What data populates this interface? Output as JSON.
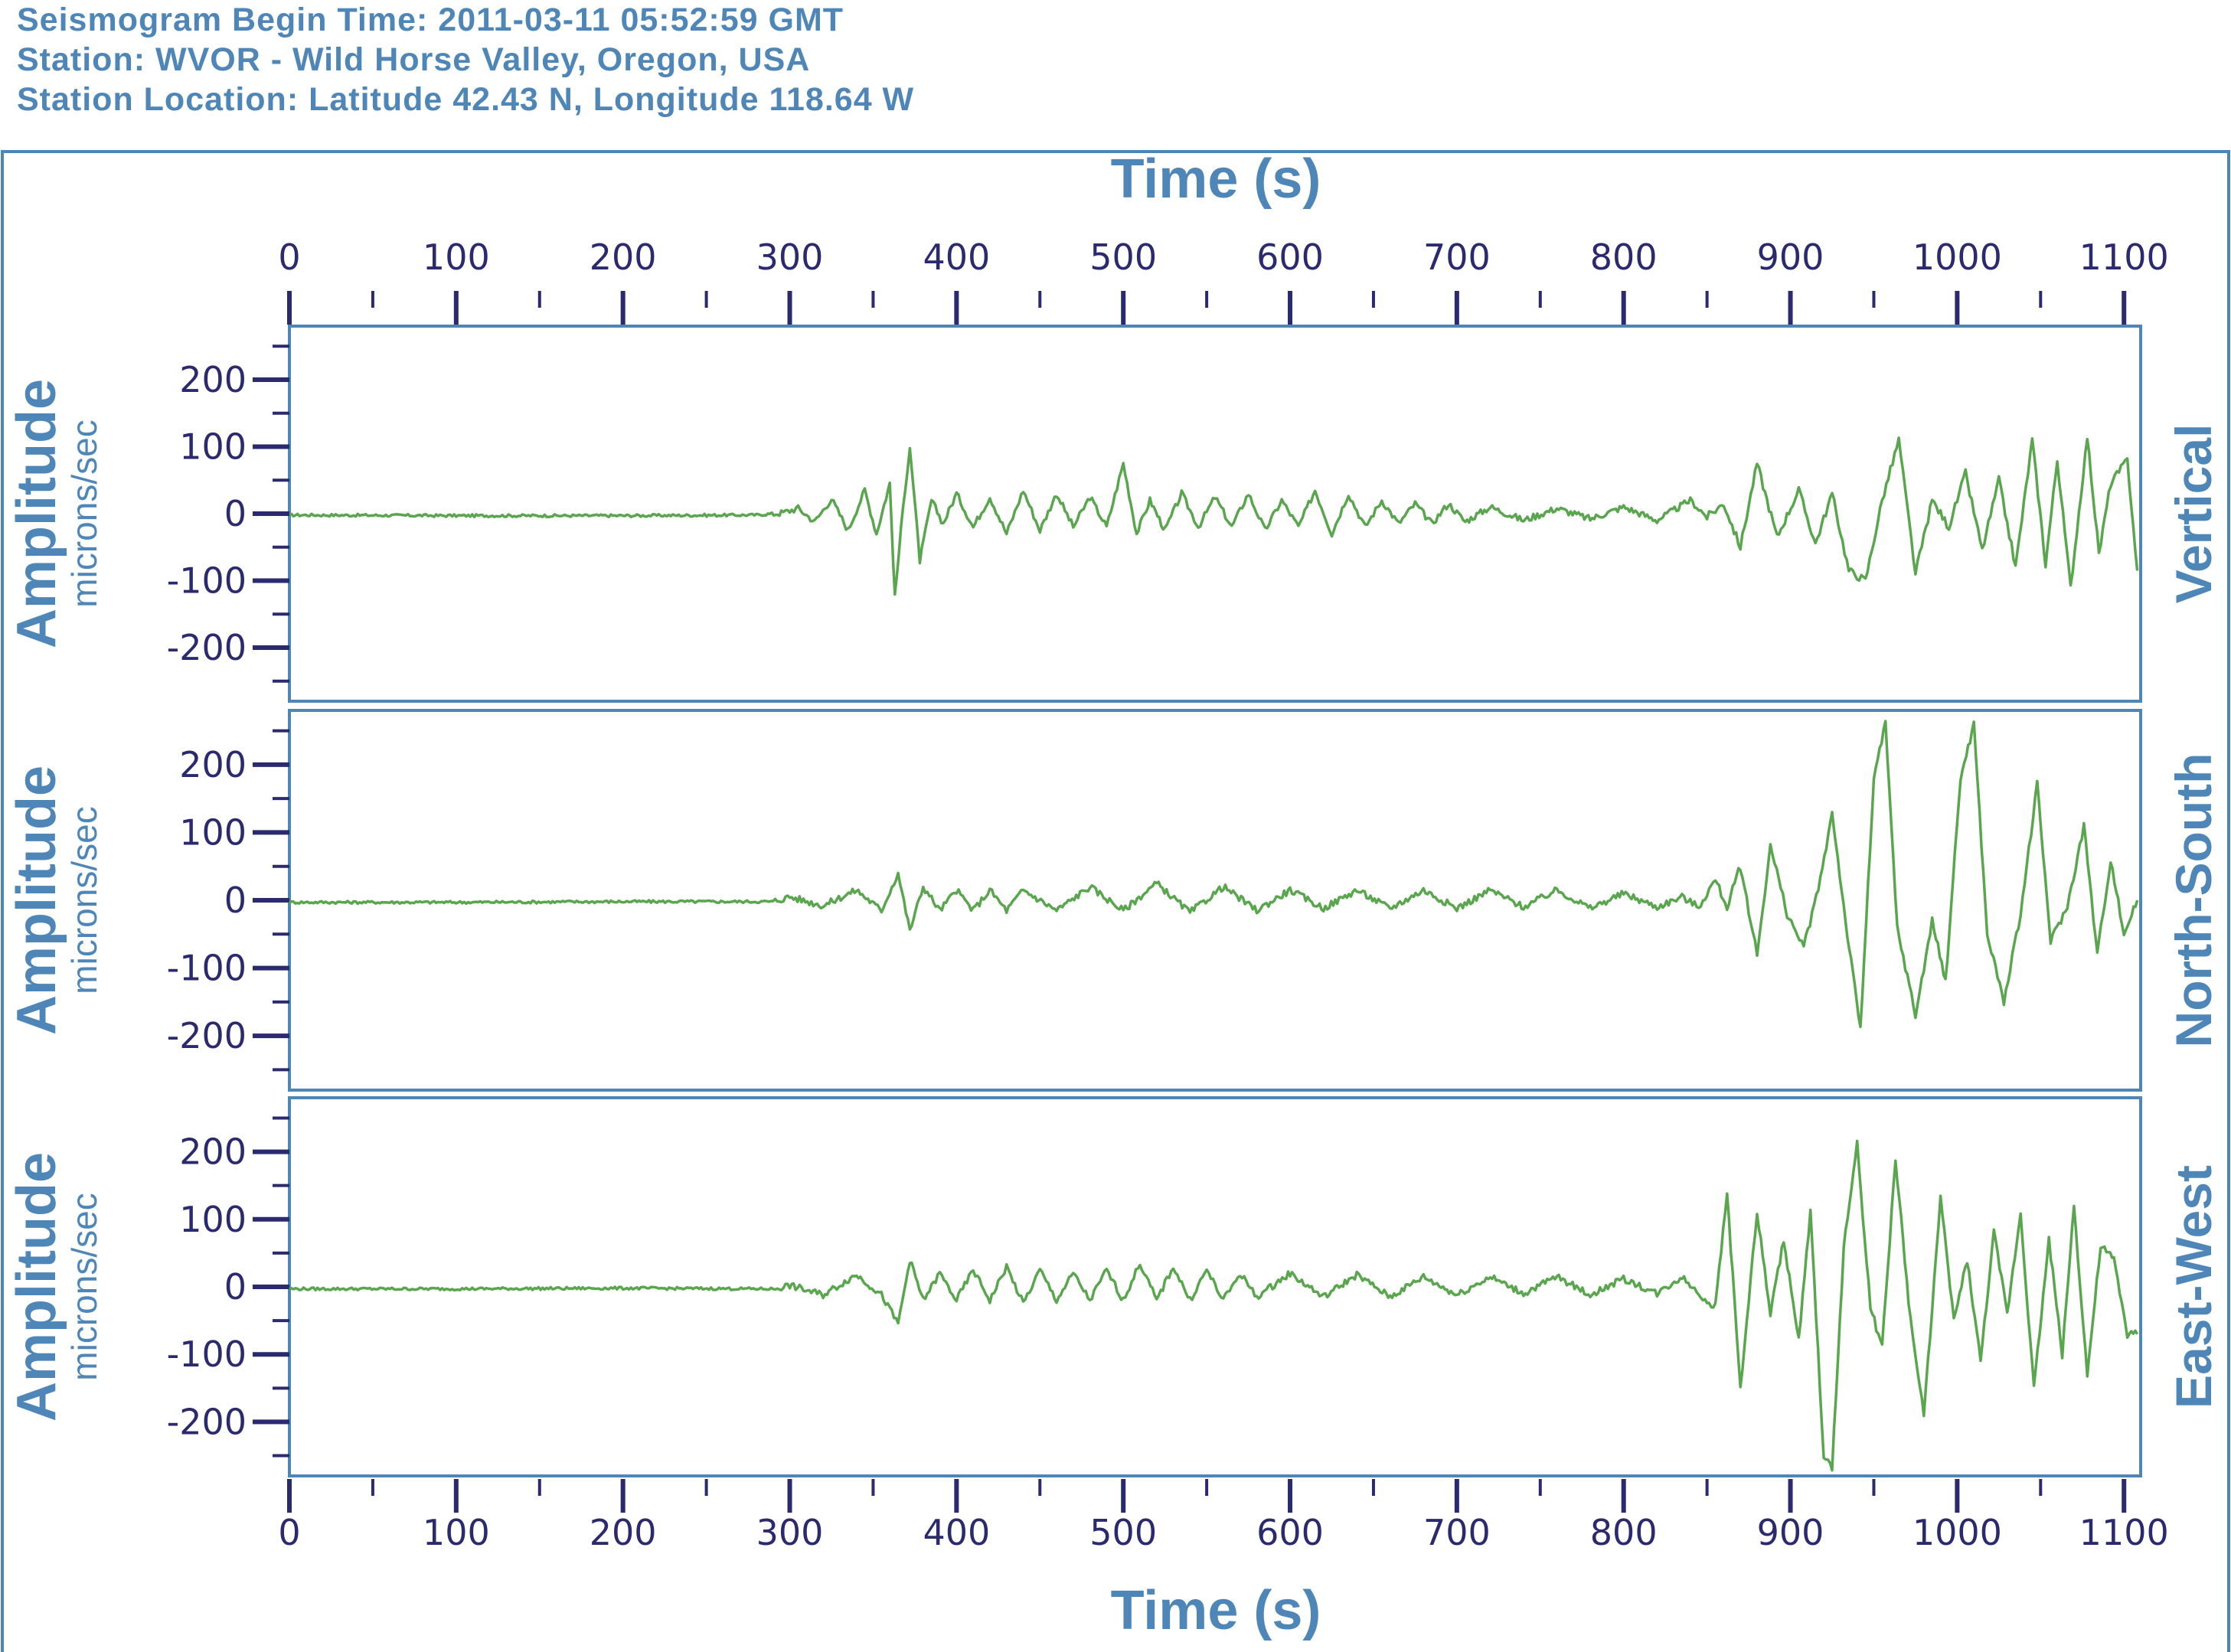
{
  "header": {
    "line1": "Seismogram Begin Time: 2011-03-11 05:52:59 GMT",
    "line2": "Station: WVOR - Wild Horse Valley, Oregon, USA",
    "line3": "Station Location: Latitude 42.43 N, Longitude 118.64 W"
  },
  "colors": {
    "trace": "#5aa64e",
    "frame": "#4f86b8",
    "tick": "#2b2a6e",
    "title": "#4f86b8"
  },
  "chart_data": {
    "type": "line",
    "xlabel": "Time (s)",
    "xlim": [
      0,
      1110
    ],
    "x_ticks": [
      "0",
      "100",
      "200",
      "300",
      "400",
      "500",
      "600",
      "700",
      "800",
      "900",
      "1000",
      "1100"
    ],
    "ylim": [
      -280,
      280
    ],
    "y_ticks": [
      "200",
      "100",
      "0",
      "-100",
      "-200"
    ],
    "ylabel": "Amplitude",
    "yunit": "microns/sec",
    "panels": [
      {
        "name": "Vertical",
        "points": [
          [
            0,
            -2
          ],
          [
            100,
            -3
          ],
          [
            200,
            -3
          ],
          [
            280,
            -2
          ],
          [
            295,
            1
          ],
          [
            305,
            8
          ],
          [
            315,
            -12
          ],
          [
            325,
            22
          ],
          [
            335,
            -25
          ],
          [
            345,
            35
          ],
          [
            352,
            -30
          ],
          [
            360,
            45
          ],
          [
            363,
            -125
          ],
          [
            368,
            10
          ],
          [
            372,
            100
          ],
          [
            378,
            -70
          ],
          [
            385,
            20
          ],
          [
            392,
            -15
          ],
          [
            400,
            30
          ],
          [
            410,
            -20
          ],
          [
            420,
            25
          ],
          [
            430,
            -30
          ],
          [
            440,
            35
          ],
          [
            450,
            -25
          ],
          [
            460,
            30
          ],
          [
            470,
            -20
          ],
          [
            480,
            25
          ],
          [
            490,
            -20
          ],
          [
            500,
            75
          ],
          [
            508,
            -30
          ],
          [
            516,
            20
          ],
          [
            525,
            -25
          ],
          [
            535,
            30
          ],
          [
            545,
            -20
          ],
          [
            555,
            25
          ],
          [
            565,
            -20
          ],
          [
            575,
            30
          ],
          [
            585,
            -25
          ],
          [
            595,
            20
          ],
          [
            605,
            -20
          ],
          [
            615,
            35
          ],
          [
            625,
            -30
          ],
          [
            635,
            30
          ],
          [
            645,
            -20
          ],
          [
            655,
            20
          ],
          [
            665,
            -15
          ],
          [
            675,
            15
          ],
          [
            685,
            -15
          ],
          [
            695,
            15
          ],
          [
            705,
            -12
          ],
          [
            720,
            10
          ],
          [
            740,
            -10
          ],
          [
            760,
            8
          ],
          [
            780,
            -8
          ],
          [
            800,
            10
          ],
          [
            820,
            -10
          ],
          [
            840,
            20
          ],
          [
            850,
            -5
          ],
          [
            860,
            15
          ],
          [
            870,
            -50
          ],
          [
            880,
            75
          ],
          [
            892,
            -35
          ],
          [
            905,
            35
          ],
          [
            915,
            -45
          ],
          [
            925,
            30
          ],
          [
            935,
            -85
          ],
          [
            945,
            -100
          ],
          [
            955,
            20
          ],
          [
            965,
            110
          ],
          [
            975,
            -90
          ],
          [
            985,
            20
          ],
          [
            995,
            -20
          ],
          [
            1005,
            60
          ],
          [
            1015,
            -55
          ],
          [
            1025,
            50
          ],
          [
            1035,
            -80
          ],
          [
            1045,
            110
          ],
          [
            1053,
            -75
          ],
          [
            1060,
            80
          ],
          [
            1068,
            -110
          ],
          [
            1078,
            115
          ],
          [
            1085,
            -60
          ],
          [
            1092,
            45
          ],
          [
            1102,
            80
          ],
          [
            1108,
            -85
          ]
        ]
      },
      {
        "name": "North-South",
        "points": [
          [
            0,
            -3
          ],
          [
            100,
            -3
          ],
          [
            200,
            -2
          ],
          [
            290,
            -2
          ],
          [
            300,
            5
          ],
          [
            320,
            -8
          ],
          [
            340,
            15
          ],
          [
            355,
            -15
          ],
          [
            365,
            40
          ],
          [
            372,
            -45
          ],
          [
            380,
            20
          ],
          [
            390,
            -15
          ],
          [
            400,
            15
          ],
          [
            410,
            -15
          ],
          [
            420,
            15
          ],
          [
            430,
            -15
          ],
          [
            440,
            15
          ],
          [
            460,
            -15
          ],
          [
            480,
            20
          ],
          [
            500,
            -15
          ],
          [
            520,
            25
          ],
          [
            540,
            -18
          ],
          [
            560,
            20
          ],
          [
            580,
            -15
          ],
          [
            600,
            15
          ],
          [
            620,
            -12
          ],
          [
            640,
            15
          ],
          [
            660,
            -12
          ],
          [
            680,
            15
          ],
          [
            700,
            -12
          ],
          [
            720,
            15
          ],
          [
            740,
            -10
          ],
          [
            760,
            15
          ],
          [
            780,
            -12
          ],
          [
            800,
            10
          ],
          [
            820,
            -10
          ],
          [
            835,
            5
          ],
          [
            845,
            -10
          ],
          [
            855,
            30
          ],
          [
            862,
            -10
          ],
          [
            870,
            50
          ],
          [
            880,
            -80
          ],
          [
            888,
            80
          ],
          [
            898,
            -20
          ],
          [
            908,
            -70
          ],
          [
            918,
            30
          ],
          [
            925,
            130
          ],
          [
            933,
            -30
          ],
          [
            942,
            -190
          ],
          [
            950,
            180
          ],
          [
            957,
            260
          ],
          [
            964,
            -40
          ],
          [
            975,
            -170
          ],
          [
            985,
            -30
          ],
          [
            993,
            -120
          ],
          [
            1002,
            180
          ],
          [
            1010,
            260
          ],
          [
            1018,
            -50
          ],
          [
            1028,
            -150
          ],
          [
            1038,
            -20
          ],
          [
            1048,
            170
          ],
          [
            1056,
            -60
          ],
          [
            1066,
            -10
          ],
          [
            1076,
            110
          ],
          [
            1084,
            -80
          ],
          [
            1092,
            60
          ],
          [
            1100,
            -50
          ],
          [
            1108,
            0
          ]
        ]
      },
      {
        "name": "East-West",
        "points": [
          [
            0,
            -3
          ],
          [
            100,
            -3
          ],
          [
            200,
            -2
          ],
          [
            290,
            -3
          ],
          [
            300,
            2
          ],
          [
            320,
            -12
          ],
          [
            340,
            18
          ],
          [
            355,
            -12
          ],
          [
            365,
            -55
          ],
          [
            372,
            40
          ],
          [
            380,
            -20
          ],
          [
            390,
            20
          ],
          [
            400,
            -20
          ],
          [
            410,
            25
          ],
          [
            420,
            -20
          ],
          [
            430,
            30
          ],
          [
            440,
            -25
          ],
          [
            450,
            25
          ],
          [
            460,
            -20
          ],
          [
            470,
            20
          ],
          [
            480,
            -20
          ],
          [
            490,
            25
          ],
          [
            500,
            -20
          ],
          [
            510,
            35
          ],
          [
            520,
            -20
          ],
          [
            530,
            30
          ],
          [
            540,
            -20
          ],
          [
            550,
            25
          ],
          [
            560,
            -20
          ],
          [
            570,
            20
          ],
          [
            580,
            -15
          ],
          [
            600,
            20
          ],
          [
            620,
            -15
          ],
          [
            640,
            18
          ],
          [
            660,
            -15
          ],
          [
            680,
            15
          ],
          [
            700,
            -12
          ],
          [
            720,
            15
          ],
          [
            740,
            -10
          ],
          [
            760,
            15
          ],
          [
            780,
            -12
          ],
          [
            800,
            12
          ],
          [
            820,
            -10
          ],
          [
            835,
            15
          ],
          [
            845,
            -10
          ],
          [
            855,
            -30
          ],
          [
            862,
            140
          ],
          [
            870,
            -150
          ],
          [
            880,
            110
          ],
          [
            888,
            -40
          ],
          [
            896,
            70
          ],
          [
            905,
            -80
          ],
          [
            912,
            110
          ],
          [
            920,
            -250
          ],
          [
            925,
            -270
          ],
          [
            932,
            60
          ],
          [
            940,
            210
          ],
          [
            948,
            -30
          ],
          [
            955,
            -90
          ],
          [
            963,
            190
          ],
          [
            972,
            -50
          ],
          [
            980,
            -190
          ],
          [
            990,
            130
          ],
          [
            998,
            -50
          ],
          [
            1006,
            40
          ],
          [
            1014,
            -110
          ],
          [
            1022,
            80
          ],
          [
            1030,
            -40
          ],
          [
            1038,
            110
          ],
          [
            1046,
            -150
          ],
          [
            1055,
            70
          ],
          [
            1063,
            -100
          ],
          [
            1070,
            120
          ],
          [
            1078,
            -130
          ],
          [
            1086,
            60
          ],
          [
            1094,
            40
          ],
          [
            1102,
            -70
          ],
          [
            1108,
            -70
          ]
        ]
      }
    ]
  }
}
